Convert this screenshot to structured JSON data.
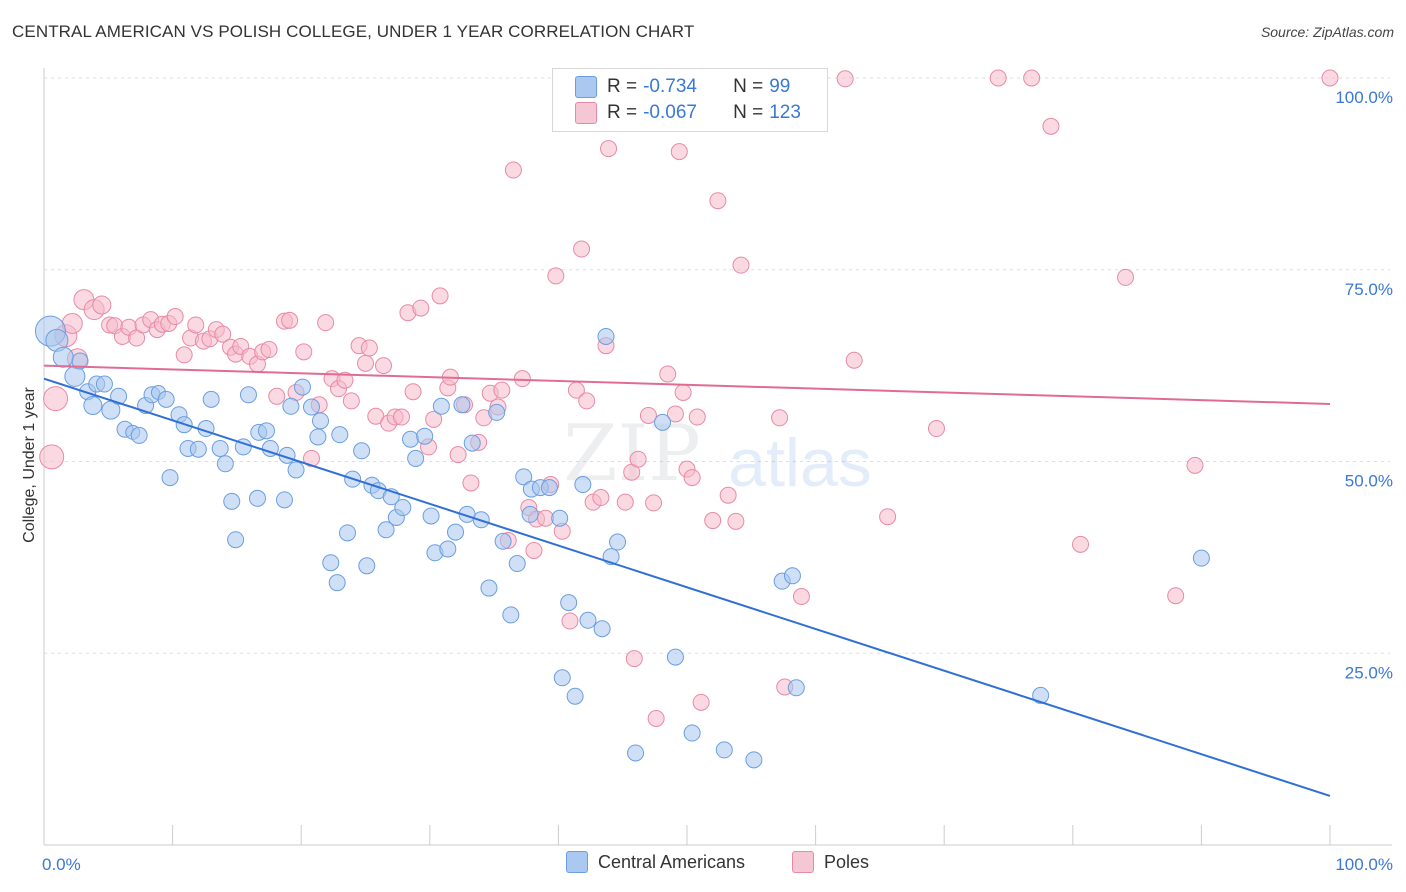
{
  "title": "CENTRAL AMERICAN VS POLISH COLLEGE, UNDER 1 YEAR CORRELATION CHART",
  "source": "Source: ZipAtlas.com",
  "watermark": {
    "zip": "ZIP",
    "atlas": "atlas"
  },
  "legend": {
    "r_label": "R =",
    "n_label": "N =",
    "rows": [
      {
        "name": "Central Americans",
        "r": "-0.734",
        "n": "99",
        "color": "#aac8f0"
      },
      {
        "name": "Poles",
        "r": "-0.067",
        "n": "123",
        "color": "#f5b8ca"
      }
    ]
  },
  "colors": {
    "blue_fill": "#a7c6ef",
    "blue_stroke": "#6a9ee0",
    "blue_line": "#2f6fd6",
    "pink_fill": "#f6bacb",
    "pink_stroke": "#e88aa6",
    "pink_line": "#e06c95",
    "axis_text": "#3a78d6",
    "grid": "#dddddd"
  },
  "chart_data": {
    "type": "scatter",
    "title": "CENTRAL AMERICAN VS POLISH COLLEGE, UNDER 1 YEAR CORRELATION CHART",
    "xlabel": "",
    "ylabel": "College, Under 1 year",
    "x_tick_labels": [
      "0.0%",
      "100.0%"
    ],
    "y_tick_labels": [
      "25.0%",
      "50.0%",
      "75.0%",
      "100.0%"
    ],
    "y_ticks": [
      25,
      50,
      75,
      100
    ],
    "xlim": [
      0,
      100
    ],
    "ylim": [
      0,
      100
    ],
    "series": [
      {
        "name": "Central Americans",
        "trend": {
          "x": [
            0,
            100
          ],
          "y": [
            60.8,
            6.4
          ]
        },
        "points": [
          [
            0.5,
            67.0,
            14
          ],
          [
            1.0,
            65.8,
            10
          ],
          [
            1.5,
            63.6,
            9
          ],
          [
            2.4,
            61.1,
            9
          ],
          [
            2.8,
            63.1,
            7
          ],
          [
            3.4,
            59.1,
            7
          ],
          [
            4.1,
            60.1,
            7
          ],
          [
            3.8,
            57.3,
            8
          ],
          [
            4.7,
            60.1,
            7
          ],
          [
            5.2,
            56.7,
            8
          ],
          [
            5.8,
            58.5,
            7
          ],
          [
            6.3,
            54.2,
            7
          ],
          [
            6.9,
            53.8,
            6
          ],
          [
            7.4,
            53.4,
            7
          ],
          [
            7.9,
            57.3,
            7
          ],
          [
            8.4,
            58.7,
            7
          ],
          [
            8.9,
            59.0,
            6
          ],
          [
            9.5,
            58.1,
            7
          ],
          [
            9.8,
            47.9,
            7
          ],
          [
            10.5,
            56.1,
            7
          ],
          [
            10.9,
            54.8,
            7
          ],
          [
            11.2,
            51.7,
            7
          ],
          [
            12.0,
            51.6,
            7
          ],
          [
            12.6,
            54.3,
            7
          ],
          [
            13.0,
            58.1,
            7
          ],
          [
            13.7,
            51.7,
            7
          ],
          [
            14.1,
            49.7,
            7
          ],
          [
            14.6,
            44.8,
            7
          ],
          [
            14.9,
            39.8,
            7
          ],
          [
            15.5,
            51.9,
            7
          ],
          [
            15.9,
            58.7,
            7
          ],
          [
            16.7,
            53.8,
            7
          ],
          [
            16.6,
            45.2,
            7
          ],
          [
            17.3,
            54.0,
            7
          ],
          [
            17.6,
            51.7,
            7
          ],
          [
            18.7,
            45.0,
            7
          ],
          [
            18.9,
            50.8,
            7
          ],
          [
            19.2,
            57.2,
            7
          ],
          [
            19.6,
            48.9,
            7
          ],
          [
            20.1,
            59.7,
            7
          ],
          [
            20.8,
            57.1,
            7
          ],
          [
            21.3,
            53.2,
            7
          ],
          [
            21.5,
            55.3,
            7
          ],
          [
            22.3,
            36.8,
            7
          ],
          [
            22.8,
            34.2,
            7
          ],
          [
            23.0,
            53.5,
            7
          ],
          [
            23.6,
            40.7,
            7
          ],
          [
            24.0,
            47.7,
            7
          ],
          [
            24.7,
            51.4,
            7
          ],
          [
            25.1,
            36.4,
            7
          ],
          [
            25.5,
            46.9,
            7
          ],
          [
            26.0,
            46.2,
            7
          ],
          [
            26.6,
            41.1,
            7
          ],
          [
            27.0,
            45.4,
            7
          ],
          [
            27.4,
            42.7,
            7
          ],
          [
            27.9,
            44.0,
            7
          ],
          [
            28.5,
            52.9,
            7
          ],
          [
            28.9,
            50.4,
            7
          ],
          [
            29.6,
            53.3,
            7
          ],
          [
            30.1,
            42.9,
            7
          ],
          [
            30.4,
            38.1,
            7
          ],
          [
            30.9,
            57.2,
            7
          ],
          [
            31.4,
            38.6,
            7
          ],
          [
            32.0,
            40.8,
            7
          ],
          [
            32.5,
            57.4,
            7
          ],
          [
            32.9,
            43.1,
            7
          ],
          [
            33.3,
            52.4,
            7
          ],
          [
            34.0,
            42.4,
            7
          ],
          [
            34.6,
            33.5,
            7
          ],
          [
            35.2,
            56.4,
            7
          ],
          [
            35.7,
            39.6,
            7
          ],
          [
            36.3,
            30.0,
            7
          ],
          [
            36.8,
            36.7,
            7
          ],
          [
            37.3,
            48.0,
            7
          ],
          [
            37.8,
            43.1,
            7
          ],
          [
            37.9,
            46.4,
            7
          ],
          [
            38.6,
            46.6,
            7
          ],
          [
            39.3,
            46.6,
            7
          ],
          [
            40.1,
            42.6,
            7
          ],
          [
            40.3,
            21.8,
            7
          ],
          [
            40.8,
            31.6,
            7
          ],
          [
            41.3,
            19.4,
            7
          ],
          [
            41.9,
            47.0,
            7
          ],
          [
            42.3,
            29.3,
            7
          ],
          [
            43.4,
            28.2,
            7
          ],
          [
            43.7,
            66.3,
            7
          ],
          [
            44.1,
            37.6,
            7
          ],
          [
            44.6,
            39.5,
            7
          ],
          [
            46.0,
            12.0,
            7
          ],
          [
            48.1,
            55.1,
            7
          ],
          [
            49.1,
            24.5,
            7
          ],
          [
            50.4,
            14.6,
            7
          ],
          [
            52.9,
            12.4,
            7
          ],
          [
            55.2,
            11.1,
            7
          ],
          [
            57.4,
            34.4,
            7
          ],
          [
            58.2,
            35.1,
            7
          ],
          [
            58.5,
            20.5,
            7
          ],
          [
            77.5,
            19.5,
            7
          ],
          [
            90.0,
            37.4,
            7
          ]
        ]
      },
      {
        "name": "Poles",
        "trend": {
          "x": [
            0,
            100
          ],
          "y": [
            62.5,
            57.5
          ]
        },
        "points": [
          [
            0.6,
            50.6,
            11
          ],
          [
            0.9,
            58.2,
            11
          ],
          [
            1.7,
            66.4,
            10
          ],
          [
            2.2,
            68.0,
            9
          ],
          [
            2.6,
            63.4,
            9
          ],
          [
            3.1,
            71.1,
            9
          ],
          [
            3.9,
            69.8,
            9
          ],
          [
            4.5,
            70.4,
            8
          ],
          [
            5.1,
            67.8,
            7
          ],
          [
            5.5,
            67.7,
            7
          ],
          [
            6.1,
            66.3,
            7
          ],
          [
            6.6,
            67.5,
            7
          ],
          [
            7.2,
            66.1,
            7
          ],
          [
            7.7,
            67.8,
            7
          ],
          [
            8.3,
            68.5,
            7
          ],
          [
            8.8,
            67.2,
            7
          ],
          [
            9.2,
            67.9,
            7
          ],
          [
            9.7,
            68.0,
            7
          ],
          [
            10.2,
            68.9,
            7
          ],
          [
            10.9,
            63.9,
            7
          ],
          [
            11.4,
            66.1,
            7
          ],
          [
            11.8,
            67.8,
            7
          ],
          [
            12.4,
            65.7,
            7
          ],
          [
            12.9,
            66.0,
            7
          ],
          [
            13.4,
            67.2,
            7
          ],
          [
            13.9,
            66.6,
            7
          ],
          [
            14.5,
            64.9,
            7
          ],
          [
            14.9,
            64.0,
            7
          ],
          [
            15.3,
            65.0,
            7
          ],
          [
            16.0,
            63.7,
            7
          ],
          [
            16.6,
            62.7,
            7
          ],
          [
            17.0,
            64.3,
            7
          ],
          [
            17.5,
            64.6,
            7
          ],
          [
            18.1,
            58.5,
            7
          ],
          [
            18.7,
            68.3,
            7
          ],
          [
            19.1,
            68.4,
            7
          ],
          [
            19.6,
            59.0,
            7
          ],
          [
            20.2,
            64.3,
            7
          ],
          [
            20.8,
            50.4,
            7
          ],
          [
            21.4,
            57.4,
            7
          ],
          [
            21.9,
            68.1,
            7
          ],
          [
            22.4,
            60.8,
            7
          ],
          [
            22.9,
            59.5,
            7
          ],
          [
            23.4,
            60.6,
            7
          ],
          [
            23.9,
            57.9,
            7
          ],
          [
            24.5,
            65.1,
            7
          ],
          [
            25.0,
            62.8,
            7
          ],
          [
            25.3,
            64.8,
            7
          ],
          [
            25.8,
            55.9,
            7
          ],
          [
            26.4,
            62.5,
            7
          ],
          [
            26.8,
            55.0,
            7
          ],
          [
            27.3,
            55.8,
            7
          ],
          [
            27.8,
            55.8,
            7
          ],
          [
            28.3,
            69.4,
            7
          ],
          [
            28.7,
            59.1,
            7
          ],
          [
            29.3,
            70.0,
            7
          ],
          [
            29.9,
            51.9,
            7
          ],
          [
            30.3,
            55.5,
            7
          ],
          [
            30.8,
            71.6,
            7
          ],
          [
            31.4,
            59.6,
            7
          ],
          [
            31.6,
            61.0,
            7
          ],
          [
            32.2,
            50.9,
            7
          ],
          [
            32.7,
            57.4,
            7
          ],
          [
            33.2,
            47.2,
            7
          ],
          [
            33.8,
            52.5,
            7
          ],
          [
            34.2,
            55.7,
            7
          ],
          [
            34.7,
            58.9,
            7
          ],
          [
            35.3,
            57.1,
            7
          ],
          [
            35.6,
            59.3,
            7
          ],
          [
            36.1,
            39.7,
            7
          ],
          [
            36.5,
            88.0,
            7
          ],
          [
            37.2,
            60.8,
            7
          ],
          [
            37.7,
            44.0,
            7
          ],
          [
            38.1,
            38.4,
            7
          ],
          [
            38.3,
            42.5,
            7
          ],
          [
            39.0,
            42.6,
            7
          ],
          [
            39.4,
            47.0,
            7
          ],
          [
            39.8,
            74.2,
            7
          ],
          [
            40.3,
            40.9,
            7
          ],
          [
            40.9,
            29.2,
            7
          ],
          [
            41.4,
            59.3,
            7
          ],
          [
            41.8,
            77.7,
            7
          ],
          [
            42.2,
            57.9,
            7
          ],
          [
            42.7,
            44.7,
            7
          ],
          [
            43.3,
            45.3,
            7
          ],
          [
            43.7,
            65.1,
            7
          ],
          [
            43.9,
            90.8,
            7
          ],
          [
            45.2,
            44.7,
            7
          ],
          [
            45.7,
            48.6,
            7
          ],
          [
            45.9,
            24.3,
            7
          ],
          [
            46.2,
            50.3,
            7
          ],
          [
            47.0,
            56.0,
            7
          ],
          [
            47.4,
            44.6,
            7
          ],
          [
            47.6,
            16.5,
            7
          ],
          [
            48.5,
            61.4,
            7
          ],
          [
            49.1,
            56.2,
            7
          ],
          [
            49.4,
            90.4,
            7
          ],
          [
            49.7,
            59.0,
            7
          ],
          [
            50.0,
            49.0,
            7
          ],
          [
            50.4,
            47.9,
            7
          ],
          [
            50.8,
            55.8,
            7
          ],
          [
            51.1,
            18.6,
            7
          ],
          [
            52.0,
            42.3,
            7
          ],
          [
            52.4,
            84.0,
            7
          ],
          [
            53.2,
            45.6,
            7
          ],
          [
            53.8,
            42.2,
            7
          ],
          [
            54.2,
            75.6,
            7
          ],
          [
            57.2,
            55.7,
            7
          ],
          [
            57.6,
            20.6,
            7
          ],
          [
            58.9,
            32.4,
            7
          ],
          [
            62.3,
            99.9,
            7
          ],
          [
            63.0,
            63.2,
            7
          ],
          [
            65.6,
            42.8,
            7
          ],
          [
            69.4,
            54.3,
            7
          ],
          [
            74.2,
            100.0,
            7
          ],
          [
            76.8,
            100.0,
            7
          ],
          [
            78.3,
            93.7,
            7
          ],
          [
            80.6,
            39.2,
            7
          ],
          [
            84.1,
            74.0,
            7
          ],
          [
            88.0,
            32.5,
            7
          ],
          [
            89.5,
            49.5,
            7
          ],
          [
            100.0,
            100.0,
            7
          ]
        ]
      }
    ]
  }
}
